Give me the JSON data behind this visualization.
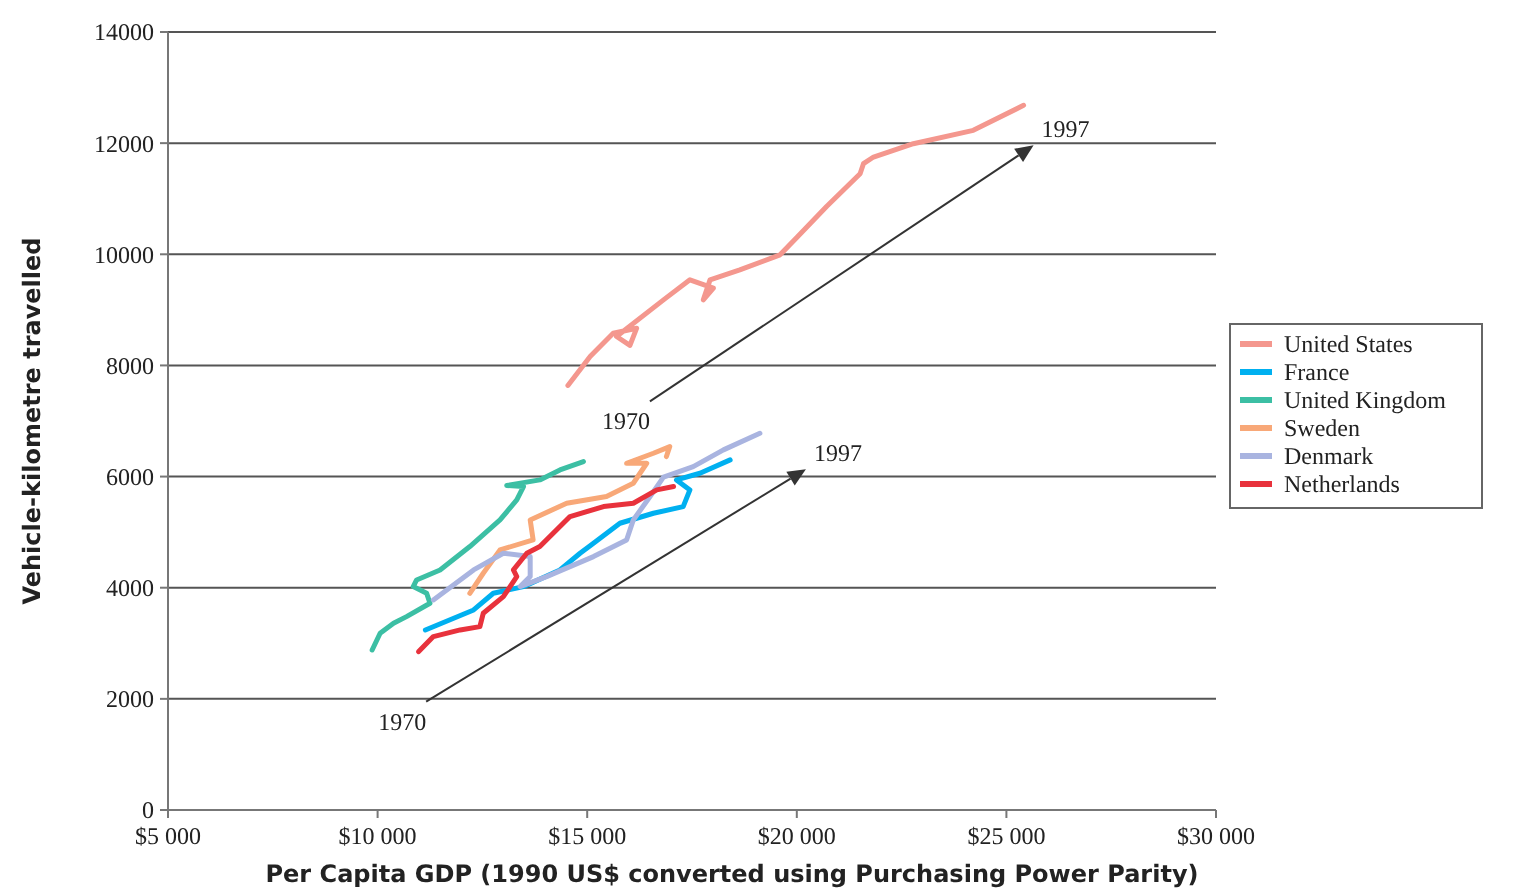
{
  "chart_data": {
    "type": "line",
    "xlabel": "Per Capita GDP (1990 US$ converted using Purchasing Power Parity)",
    "ylabel": "Vehicle-kilometre travelled",
    "xlim": [
      5000,
      30000
    ],
    "xticks": [
      {
        "value": 5000,
        "label": "$5 000"
      },
      {
        "value": 10000,
        "label": "$10 000"
      },
      {
        "value": 15000,
        "label": "$15 000"
      },
      {
        "value": 20000,
        "label": "$20 000"
      },
      {
        "value": 25000,
        "label": "$25 000"
      },
      {
        "value": 30000,
        "label": "$30 000"
      }
    ],
    "ylim": [
      0,
      14000
    ],
    "yticks": [
      0,
      2000,
      4000,
      6000,
      8000,
      10000,
      12000,
      14000
    ],
    "grid": "y",
    "legend": "right",
    "marker": "none",
    "line_style": "solid",
    "series": [
      {
        "name": "United States",
        "color": "#f4978e",
        "x": [
          14540,
          15070,
          15620,
          16180,
          16020,
          15700,
          16820,
          17450,
          18010,
          17770,
          17930,
          18640,
          19600,
          20000,
          20710,
          21510,
          21590,
          21830,
          22780,
          24210,
          25410
        ],
        "values": [
          7640,
          8160,
          8580,
          8670,
          8360,
          8520,
          9180,
          9540,
          9390,
          9180,
          9540,
          9720,
          9990,
          10300,
          10860,
          11450,
          11630,
          11750,
          11990,
          12230,
          12680
        ]
      },
      {
        "name": "France",
        "color": "#00b0f0",
        "x": [
          11140,
          12290,
          12760,
          13480,
          14350,
          14830,
          15150,
          15780,
          16580,
          17290,
          17450,
          17130,
          17690,
          18410
        ],
        "values": [
          3240,
          3600,
          3900,
          4020,
          4320,
          4620,
          4800,
          5160,
          5340,
          5460,
          5760,
          5940,
          6060,
          6300
        ]
      },
      {
        "name": "United Kingdom",
        "color": "#3cbfa4",
        "x": [
          9870,
          10060,
          10380,
          10690,
          11250,
          11170,
          10850,
          10930,
          11490,
          12200,
          12920,
          13320,
          13480,
          13080,
          13870,
          14350,
          14910
        ],
        "values": [
          2880,
          3180,
          3360,
          3480,
          3720,
          3900,
          4020,
          4140,
          4320,
          4740,
          5220,
          5580,
          5820,
          5840,
          5940,
          6120,
          6270
        ]
      },
      {
        "name": "Sweden",
        "color": "#f8a878",
        "x": [
          12200,
          12520,
          12920,
          13710,
          13640,
          14510,
          15460,
          16100,
          16420,
          15940,
          16580,
          16970,
          16890
        ],
        "values": [
          3900,
          4260,
          4680,
          4860,
          5220,
          5520,
          5640,
          5880,
          6240,
          6240,
          6420,
          6540,
          6360
        ]
      },
      {
        "name": "Denmark",
        "color": "#a9b4e0",
        "x": [
          11330,
          12290,
          13000,
          13640,
          13640,
          13400,
          14030,
          15150,
          15940,
          16100,
          16500,
          16820,
          17530,
          18250,
          19120
        ],
        "values": [
          3780,
          4320,
          4620,
          4560,
          4200,
          4020,
          4200,
          4560,
          4860,
          5220,
          5640,
          5990,
          6180,
          6480,
          6780
        ]
      },
      {
        "name": "Netherlands",
        "color": "#e8323c",
        "x": [
          10980,
          11330,
          11970,
          12440,
          12520,
          13000,
          13320,
          13240,
          13560,
          13870,
          14590,
          15390,
          16100,
          16660,
          17060
        ],
        "values": [
          2850,
          3120,
          3240,
          3300,
          3540,
          3840,
          4200,
          4320,
          4620,
          4740,
          5280,
          5460,
          5520,
          5760,
          5820
        ]
      }
    ],
    "annotations": [
      "1970",
      "1997",
      "1970",
      "1997"
    ]
  }
}
